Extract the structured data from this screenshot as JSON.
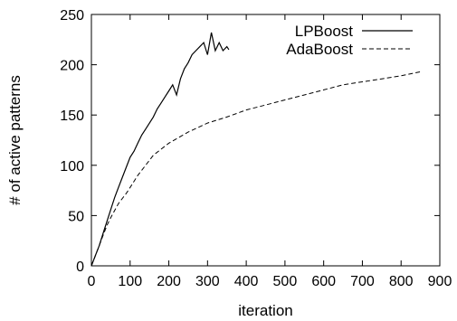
{
  "chart_data": {
    "type": "line",
    "title": "",
    "xlabel": "iteration",
    "ylabel": "# of active patterns",
    "xlim": [
      0,
      900
    ],
    "ylim": [
      0,
      250
    ],
    "x_ticks": [
      0,
      100,
      200,
      300,
      400,
      500,
      600,
      700,
      800,
      900
    ],
    "y_ticks": [
      0,
      50,
      100,
      150,
      200,
      250
    ],
    "grid": false,
    "legend_position": "top-right",
    "series": [
      {
        "name": "LPBoost",
        "style": "solid",
        "color": "#000000",
        "x": [
          0,
          10,
          20,
          30,
          40,
          50,
          60,
          70,
          80,
          90,
          100,
          110,
          120,
          130,
          140,
          150,
          160,
          170,
          180,
          190,
          200,
          210,
          220,
          230,
          240,
          250,
          260,
          270,
          280,
          290,
          300,
          310,
          320,
          330,
          340,
          350,
          355
        ],
        "y": [
          0,
          10,
          20,
          32,
          44,
          56,
          68,
          78,
          88,
          98,
          108,
          114,
          122,
          130,
          136,
          142,
          148,
          156,
          162,
          168,
          174,
          180,
          170,
          186,
          196,
          202,
          210,
          214,
          218,
          222,
          210,
          232,
          214,
          222,
          214,
          218,
          215
        ]
      },
      {
        "name": "AdaBoost",
        "style": "dashed",
        "color": "#000000",
        "x": [
          0,
          10,
          20,
          30,
          40,
          50,
          60,
          70,
          80,
          90,
          100,
          120,
          140,
          160,
          180,
          200,
          250,
          300,
          350,
          400,
          450,
          500,
          550,
          600,
          650,
          700,
          750,
          800,
          850
        ],
        "y": [
          0,
          10,
          20,
          30,
          40,
          48,
          55,
          62,
          67,
          72,
          78,
          90,
          100,
          110,
          116,
          122,
          133,
          142,
          148,
          155,
          160,
          165,
          170,
          175,
          180,
          183,
          186,
          189,
          193
        ]
      }
    ]
  }
}
